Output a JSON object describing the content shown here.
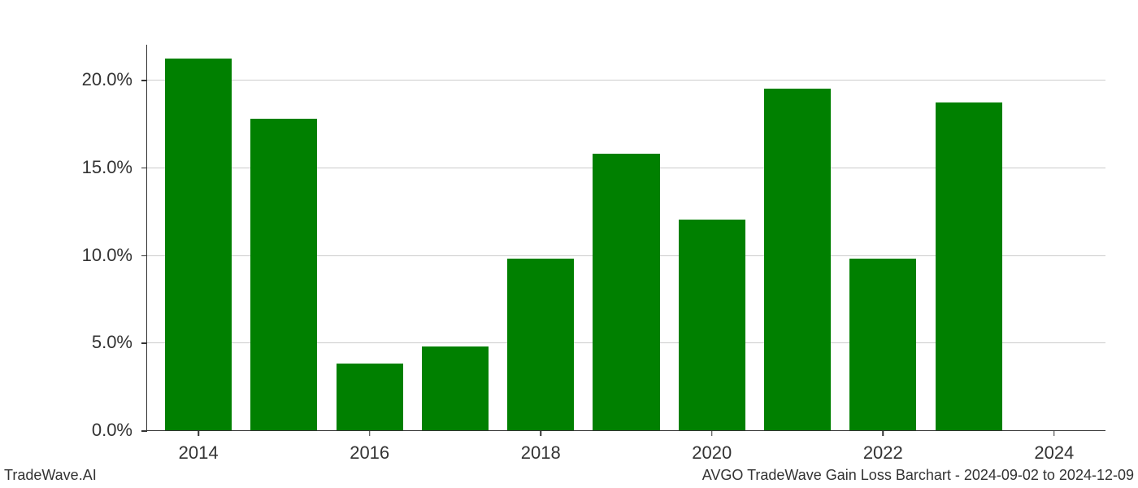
{
  "chart": {
    "type": "bar",
    "title": "AVGO TradeWave Gain Loss Barchart - 2024-09-02 to 2024-12-09",
    "watermark": "TradeWave.AI",
    "background_color": "#ffffff",
    "bar_color": "#008000",
    "grid_color": "#cccccc",
    "axis_color": "#333333",
    "text_color": "#333333",
    "ylabel_fontsize": 22,
    "xlabel_fontsize": 22,
    "footer_fontsize": 18,
    "yticks": [
      {
        "value": 0,
        "label": "0.0%"
      },
      {
        "value": 5,
        "label": "5.0%"
      },
      {
        "value": 10,
        "label": "10.0%"
      },
      {
        "value": 15,
        "label": "15.0%"
      },
      {
        "value": 20,
        "label": "20.0%"
      }
    ],
    "xticks": [
      {
        "value": 2014,
        "label": "2014"
      },
      {
        "value": 2016,
        "label": "2016"
      },
      {
        "value": 2018,
        "label": "2018"
      },
      {
        "value": 2020,
        "label": "2020"
      },
      {
        "value": 2022,
        "label": "2022"
      },
      {
        "value": 2024,
        "label": "2024"
      }
    ],
    "ylim": [
      0,
      22
    ],
    "xlim": [
      2013.4,
      2024.6
    ],
    "bar_width": 0.78,
    "data": [
      {
        "year": 2014,
        "value": 21.2
      },
      {
        "year": 2015,
        "value": 17.8
      },
      {
        "year": 2016,
        "value": 3.8
      },
      {
        "year": 2017,
        "value": 4.8
      },
      {
        "year": 2018,
        "value": 9.8
      },
      {
        "year": 2019,
        "value": 15.8
      },
      {
        "year": 2020,
        "value": 12.0
      },
      {
        "year": 2021,
        "value": 19.5
      },
      {
        "year": 2022,
        "value": 9.8
      },
      {
        "year": 2023,
        "value": 18.7
      },
      {
        "year": 2024,
        "value": 0.0
      }
    ]
  }
}
